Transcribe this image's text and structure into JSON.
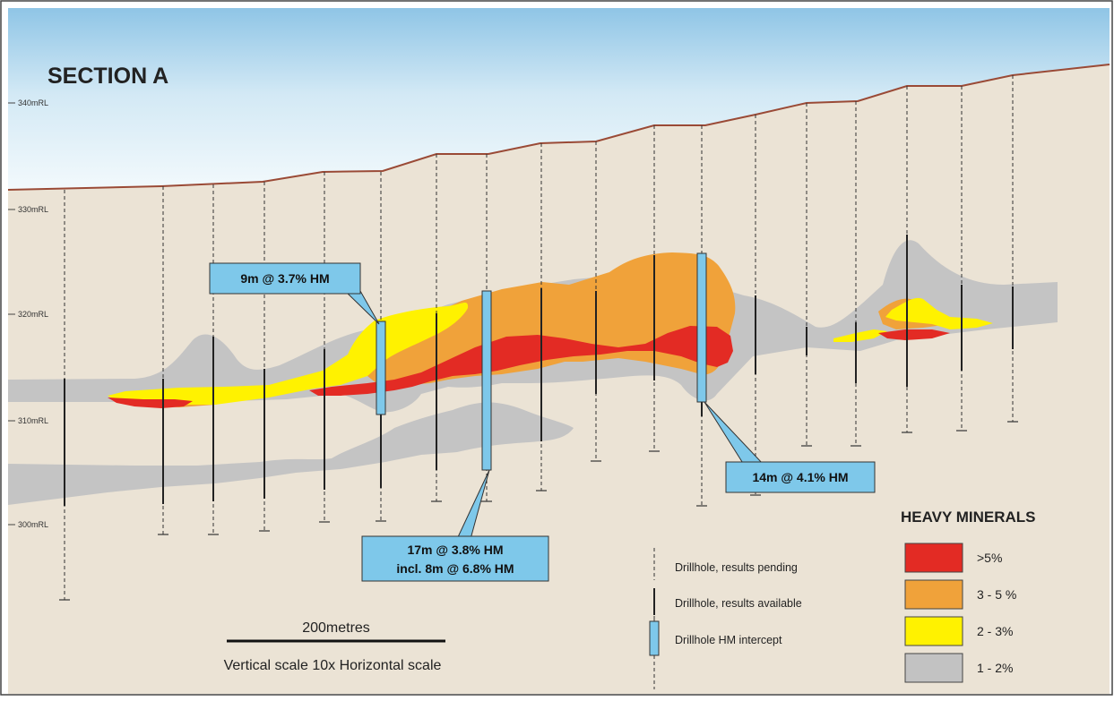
{
  "title": "SECTION A",
  "axis_labels": [
    "340mRL",
    "330mRL",
    "320mRL",
    "310mRL",
    "300mRL"
  ],
  "callouts": {
    "c1": "9m @ 3.7% HM",
    "c2_line1": "17m @ 3.8% HM",
    "c2_line2": "incl. 8m @ 6.8% HM",
    "c3": "14m @ 4.1% HM"
  },
  "key": {
    "pending": "Drillhole, results pending",
    "available": "Drillhole, results available",
    "intercept": "Drillhole HM intercept"
  },
  "scale": {
    "bar_label": "200metres",
    "note": "Vertical scale 10x Horizontal scale"
  },
  "legend": {
    "title": "HEAVY MINERALS",
    "items": [
      {
        "label": ">5%",
        "color": "#e32b24"
      },
      {
        "label": "3 - 5 %",
        "color": "#f0a23a"
      },
      {
        "label": "2 - 3%",
        "color": "#fff200"
      },
      {
        "label": "1 - 2%",
        "color": "#c2c2c2"
      }
    ]
  },
  "colors": {
    "sky_top": "#9ccbe8",
    "ground": "#ece4d6",
    "surface_line": "#9a4a36",
    "intercept": "#7ec8ea"
  }
}
